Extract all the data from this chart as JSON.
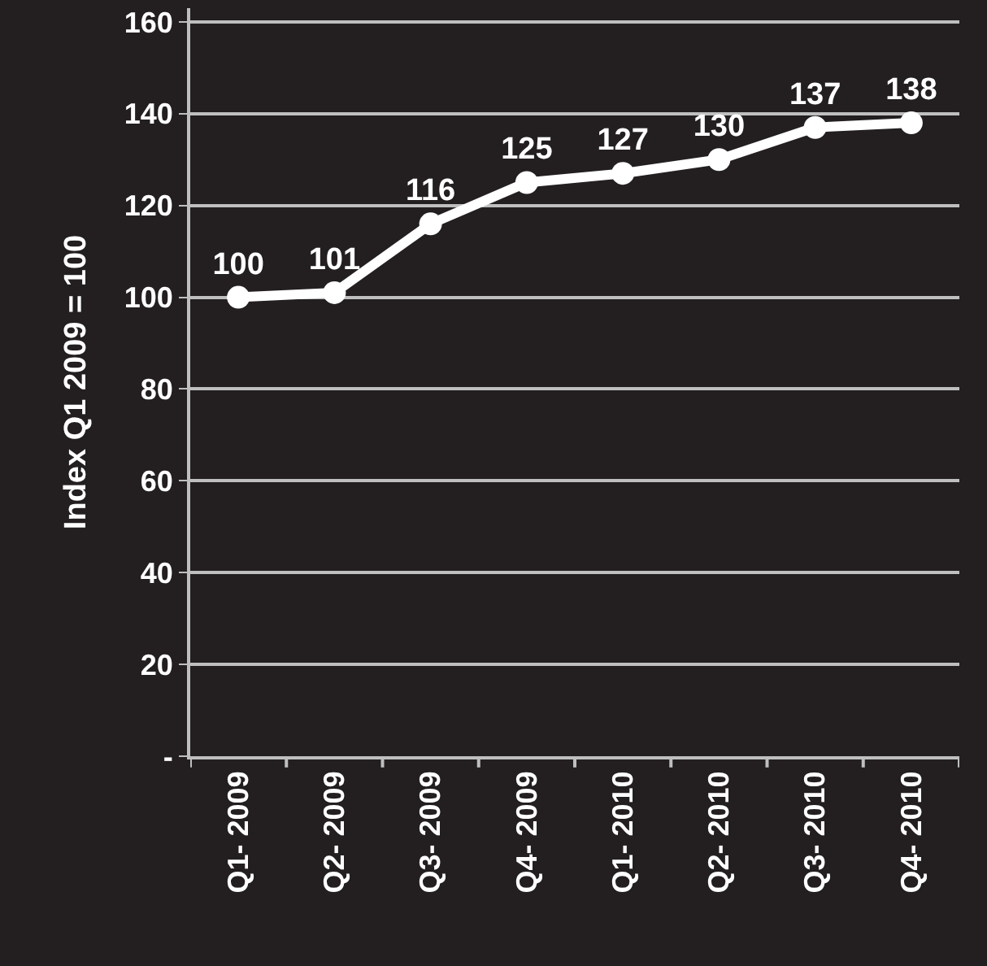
{
  "chart_data": {
    "type": "line",
    "ylabel": "Index Q1 2009 = 100",
    "categories": [
      "Q1- 2009",
      "Q2- 2009",
      "Q3- 2009",
      "Q4- 2009",
      "Q1- 2010",
      "Q2- 2010",
      "Q3- 2010",
      "Q4- 2010"
    ],
    "series": [
      {
        "color": "#ffffff",
        "values": [
          100,
          101,
          116,
          125,
          127,
          130,
          137,
          138
        ]
      }
    ],
    "ylim": [
      0,
      163
    ],
    "yticks": [
      {
        "value": 0,
        "label": "-"
      },
      20,
      40,
      60,
      80,
      100,
      120,
      140,
      160
    ],
    "grid": "y",
    "marker": "circle",
    "line_style": "solid",
    "data_labels": true,
    "legend": false
  }
}
